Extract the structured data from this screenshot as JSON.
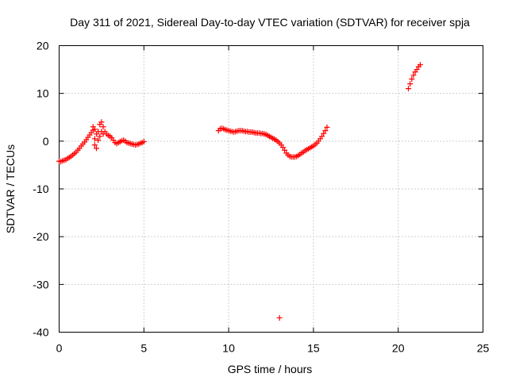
{
  "chart_data": {
    "type": "scatter",
    "title": "Day 311 of 2021, Sidereal Day-to-day VTEC variation (SDTVAR) for receiver spja",
    "xlabel": "GPS time / hours",
    "ylabel": "SDTVAR / TECUs",
    "xlim": [
      0,
      25
    ],
    "ylim": [
      -40,
      20
    ],
    "xticks": [
      0,
      5,
      10,
      15,
      20,
      25
    ],
    "yticks": [
      -40,
      -30,
      -20,
      -10,
      0,
      10,
      20
    ],
    "xtick_labels": [
      "0",
      "5",
      "10",
      "15",
      "20",
      "25"
    ],
    "ytick_labels": [
      "-40",
      "-30",
      "-20",
      "-10",
      "0",
      "10",
      "20"
    ],
    "grid": true,
    "marker": "+",
    "series": [
      {
        "name": "SDTVAR",
        "color": "#ff0000",
        "points": [
          [
            0.0,
            -4.2
          ],
          [
            0.1,
            -4.3
          ],
          [
            0.2,
            -4.1
          ],
          [
            0.3,
            -4.0
          ],
          [
            0.4,
            -3.9
          ],
          [
            0.5,
            -3.6
          ],
          [
            0.6,
            -3.4
          ],
          [
            0.7,
            -3.2
          ],
          [
            0.8,
            -2.9
          ],
          [
            0.9,
            -2.6
          ],
          [
            1.0,
            -2.3
          ],
          [
            1.1,
            -1.9
          ],
          [
            1.2,
            -1.5
          ],
          [
            1.3,
            -1.0
          ],
          [
            1.4,
            -0.6
          ],
          [
            1.5,
            -0.2
          ],
          [
            1.6,
            0.3
          ],
          [
            1.7,
            0.8
          ],
          [
            1.8,
            1.3
          ],
          [
            1.9,
            1.8
          ],
          [
            2.0,
            2.3
          ],
          [
            2.0,
            3.0
          ],
          [
            2.1,
            2.5
          ],
          [
            2.1,
            0.5
          ],
          [
            2.1,
            -0.8
          ],
          [
            2.2,
            -1.5
          ],
          [
            2.2,
            1.5
          ],
          [
            2.3,
            2.0
          ],
          [
            2.3,
            0.2
          ],
          [
            2.4,
            3.5
          ],
          [
            2.4,
            1.0
          ],
          [
            2.5,
            4.0
          ],
          [
            2.5,
            2.0
          ],
          [
            2.6,
            3.0
          ],
          [
            2.6,
            1.5
          ],
          [
            2.7,
            2.0
          ],
          [
            2.8,
            1.5
          ],
          [
            2.9,
            1.2
          ],
          [
            3.0,
            1.0
          ],
          [
            3.1,
            0.7
          ],
          [
            3.2,
            0.2
          ],
          [
            3.3,
            -0.3
          ],
          [
            3.4,
            -0.5
          ],
          [
            3.5,
            -0.3
          ],
          [
            3.6,
            -0.1
          ],
          [
            3.7,
            0.1
          ],
          [
            3.8,
            0.2
          ],
          [
            3.9,
            0.0
          ],
          [
            4.0,
            -0.3
          ],
          [
            4.1,
            -0.4
          ],
          [
            4.2,
            -0.5
          ],
          [
            4.3,
            -0.6
          ],
          [
            4.4,
            -0.7
          ],
          [
            4.5,
            -0.8
          ],
          [
            4.6,
            -0.7
          ],
          [
            4.7,
            -0.6
          ],
          [
            4.8,
            -0.4
          ],
          [
            4.9,
            -0.3
          ],
          [
            5.0,
            -0.1
          ],
          [
            9.4,
            2.2
          ],
          [
            9.5,
            2.6
          ],
          [
            9.6,
            2.7
          ],
          [
            9.7,
            2.6
          ],
          [
            9.8,
            2.4
          ],
          [
            9.9,
            2.3
          ],
          [
            10.0,
            2.2
          ],
          [
            10.1,
            2.1
          ],
          [
            10.2,
            2.0
          ],
          [
            10.3,
            1.9
          ],
          [
            10.4,
            2.0
          ],
          [
            10.5,
            2.1
          ],
          [
            10.6,
            2.2
          ],
          [
            10.7,
            2.2
          ],
          [
            10.8,
            2.2
          ],
          [
            10.9,
            2.1
          ],
          [
            11.0,
            2.0
          ],
          [
            11.1,
            2.0
          ],
          [
            11.2,
            1.9
          ],
          [
            11.3,
            1.9
          ],
          [
            11.4,
            1.9
          ],
          [
            11.5,
            1.8
          ],
          [
            11.6,
            1.7
          ],
          [
            11.7,
            1.7
          ],
          [
            11.8,
            1.7
          ],
          [
            11.9,
            1.6
          ],
          [
            12.0,
            1.6
          ],
          [
            12.1,
            1.5
          ],
          [
            12.2,
            1.4
          ],
          [
            12.3,
            1.2
          ],
          [
            12.4,
            1.0
          ],
          [
            12.5,
            0.8
          ],
          [
            12.6,
            0.6
          ],
          [
            12.7,
            0.4
          ],
          [
            12.8,
            0.2
          ],
          [
            12.9,
            -0.1
          ],
          [
            13.0,
            -0.4
          ],
          [
            13.1,
            -0.8
          ],
          [
            13.2,
            -1.3
          ],
          [
            13.3,
            -1.9
          ],
          [
            13.4,
            -2.5
          ],
          [
            13.5,
            -2.9
          ],
          [
            13.6,
            -3.2
          ],
          [
            13.7,
            -3.3
          ],
          [
            13.8,
            -3.3
          ],
          [
            13.9,
            -3.3
          ],
          [
            14.0,
            -3.2
          ],
          [
            14.1,
            -3.0
          ],
          [
            14.2,
            -2.8
          ],
          [
            14.3,
            -2.5
          ],
          [
            14.4,
            -2.3
          ],
          [
            14.5,
            -2.0
          ],
          [
            14.6,
            -1.8
          ],
          [
            14.7,
            -1.6
          ],
          [
            14.8,
            -1.4
          ],
          [
            14.9,
            -1.2
          ],
          [
            15.0,
            -1.0
          ],
          [
            15.1,
            -0.7
          ],
          [
            15.2,
            -0.4
          ],
          [
            15.3,
            0.0
          ],
          [
            15.4,
            0.5
          ],
          [
            15.5,
            1.0
          ],
          [
            15.6,
            1.6
          ],
          [
            15.7,
            2.2
          ],
          [
            15.8,
            2.9
          ],
          [
            13.0,
            -37.0
          ],
          [
            20.6,
            11.0
          ],
          [
            20.7,
            12.0
          ],
          [
            20.8,
            13.0
          ],
          [
            20.9,
            13.8
          ],
          [
            21.0,
            14.5
          ],
          [
            21.1,
            15.0
          ],
          [
            21.2,
            15.6
          ],
          [
            21.3,
            16.0
          ]
        ]
      }
    ]
  }
}
